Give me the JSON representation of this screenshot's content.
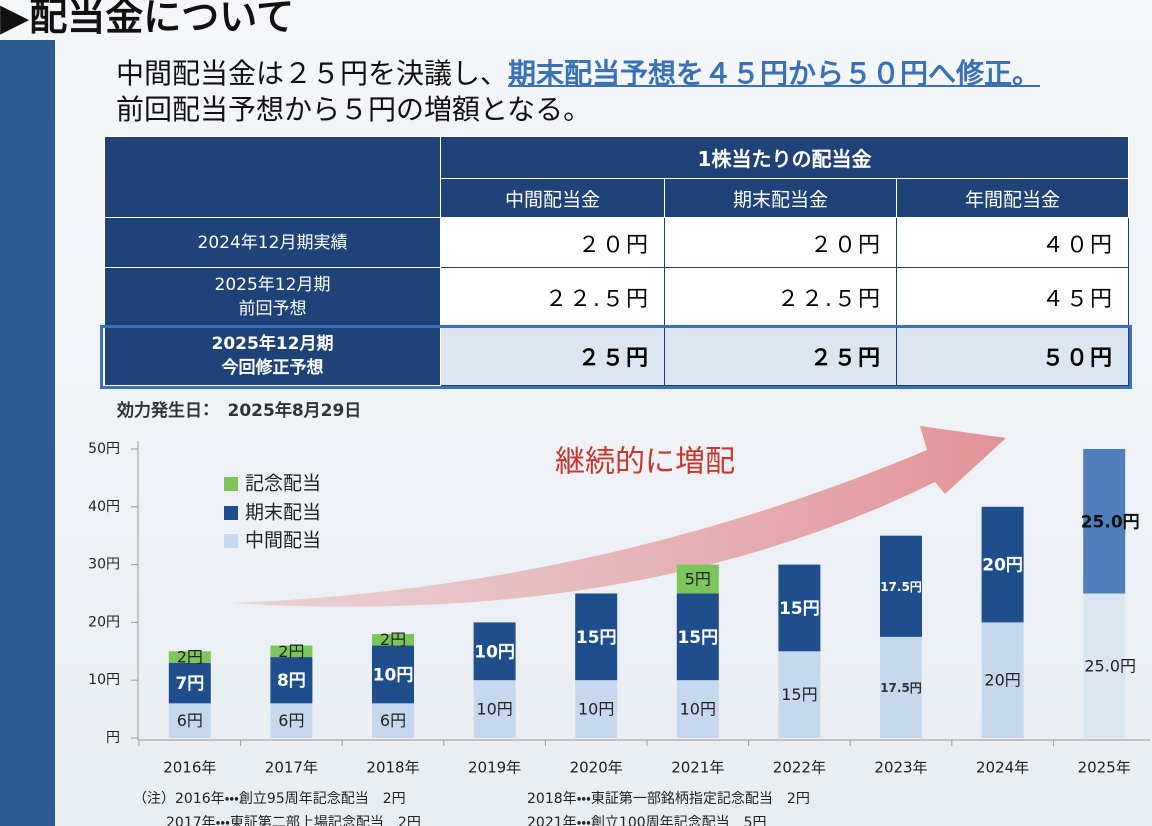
{
  "header": {
    "title": "▶配当金について"
  },
  "lead": {
    "line1": "中間配当金は２５円を決議し、",
    "line1_highlight": "期末配当予想を４５円から５０円へ修正。",
    "line2": "前回配当予想から５円の増額となる。"
  },
  "table": {
    "group_header": "1株当たりの配当金",
    "columns": [
      "中間配当金",
      "期末配当金",
      "年間配当金"
    ],
    "rows": [
      {
        "label": [
          "2024年12月期実績"
        ],
        "cells": [
          "２０円",
          "２０円",
          "４０円"
        ]
      },
      {
        "label": [
          "2025年12月期",
          "前回予想"
        ],
        "cells": [
          "２２.５円",
          "２２.５円",
          "４５円"
        ]
      },
      {
        "label": [
          "2025年12月期",
          "今回修正予想"
        ],
        "cells": [
          "２５円",
          "２５円",
          "５０円"
        ]
      }
    ]
  },
  "effective_date": {
    "label": "効力発生日：",
    "value": "2025年8月29日"
  },
  "chart_data": {
    "type": "bar",
    "stacked": true,
    "categories": [
      "2016年",
      "2017年",
      "2018年",
      "2019年",
      "2020年",
      "2021年",
      "2022年",
      "2023年",
      "2024年",
      "2025年"
    ],
    "series": [
      {
        "name": "中間配当",
        "color": "#c6d8ee",
        "colors": [
          null,
          null,
          null,
          null,
          null,
          null,
          null,
          null,
          null,
          "#dbe5f2"
        ],
        "values": [
          6,
          6,
          6,
          10,
          10,
          10,
          15,
          17.5,
          20,
          25
        ],
        "value_labels": [
          "6円",
          "6円",
          "6円",
          "10円",
          "10円",
          "10円",
          "15円",
          "17.5円",
          "20円",
          "25.0円"
        ]
      },
      {
        "name": "期末配当",
        "color": "#1f4e8c",
        "colors": [
          null,
          null,
          null,
          null,
          null,
          null,
          null,
          null,
          null,
          "#4f7fbc"
        ],
        "values": [
          7,
          8,
          10,
          10,
          15,
          15,
          15,
          17.5,
          20,
          25
        ],
        "value_labels": [
          "7円",
          "8円",
          "10円",
          "10円",
          "15円",
          "15円",
          "15円",
          "17.5円",
          "20円",
          "25.0円"
        ]
      },
      {
        "name": "記念配当",
        "color": "#7cc55b",
        "values": [
          2,
          2,
          2,
          null,
          null,
          5,
          null,
          null,
          null,
          null
        ],
        "value_labels": [
          "2円",
          "2円",
          "2円",
          null,
          null,
          "5円",
          null,
          null,
          null,
          null
        ]
      }
    ],
    "ylim": [
      0,
      50
    ],
    "yticks": [
      {
        "value": 0,
        "label": "円"
      },
      {
        "value": 10,
        "label": "10円"
      },
      {
        "value": 20,
        "label": "20円"
      },
      {
        "value": 30,
        "label": "30円"
      },
      {
        "value": 40,
        "label": "40円"
      },
      {
        "value": 50,
        "label": "50円"
      }
    ],
    "annotation": "継続的に増配",
    "legend": "upper left"
  },
  "notes": [
    [
      "（注）2016年・・・創立95周年記念配当　2円",
      "2018年・・・東証第一部銘柄指定記念配当　2円"
    ],
    [
      "2017年・・・東証第二部上場記念配当　2円",
      "2021年・・・創立100周年記念配当　5円"
    ]
  ]
}
